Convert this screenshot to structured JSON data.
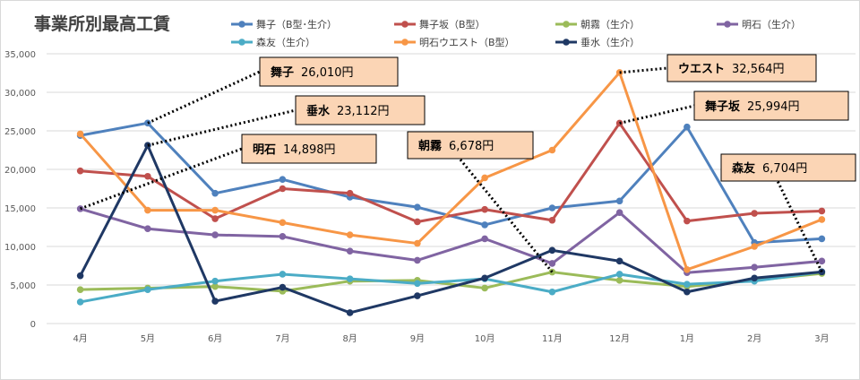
{
  "chart_data": {
    "type": "line",
    "title": "事業所別最高工賃",
    "categories": [
      "4月",
      "5月",
      "6月",
      "7月",
      "8月",
      "9月",
      "10月",
      "11月",
      "12月",
      "1月",
      "2月",
      "3月"
    ],
    "ylim": [
      0,
      35000
    ],
    "yticks": [
      "0",
      "5,000",
      "10,000",
      "15,000",
      "20,000",
      "25,000",
      "30,000",
      "35,000"
    ],
    "ytick_values": [
      0,
      5000,
      10000,
      15000,
      20000,
      25000,
      30000,
      35000
    ],
    "grid": true,
    "legend_position": "top",
    "series": [
      {
        "name": "舞子（B型･生介）",
        "color": "#4f81bd",
        "values": [
          24400,
          26010,
          16900,
          18700,
          16400,
          15100,
          12800,
          15000,
          15900,
          25500,
          10500,
          11000
        ]
      },
      {
        "name": "舞子坂（B型）",
        "color": "#c0504d",
        "values": [
          19800,
          19100,
          13600,
          17500,
          16900,
          13200,
          14800,
          13400,
          25994,
          13300,
          14300,
          14600
        ]
      },
      {
        "name": "朝霧（生介）",
        "color": "#9bbb59",
        "values": [
          4400,
          4600,
          4800,
          4200,
          5500,
          5600,
          4600,
          6678,
          5600,
          4800,
          5600,
          6500
        ]
      },
      {
        "name": "明石（生介）",
        "color": "#8064a2",
        "values": [
          14898,
          12300,
          11500,
          11300,
          9400,
          8200,
          11000,
          7800,
          14400,
          6600,
          7300,
          8100
        ]
      },
      {
        "name": "森友（生介）",
        "color": "#4bacc6",
        "values": [
          2800,
          4400,
          5500,
          6400,
          5800,
          5200,
          5800,
          4100,
          6400,
          5100,
          5500,
          6704
        ]
      },
      {
        "name": "明石ウエスト（B型）",
        "color": "#f79646",
        "values": [
          24600,
          14700,
          14700,
          13100,
          11500,
          10400,
          18900,
          22500,
          32564,
          7000,
          10000,
          13500
        ]
      },
      {
        "name": "垂水（生介）",
        "color": "#1f3864",
        "values": [
          6200,
          23112,
          2900,
          4700,
          1400,
          3600,
          5900,
          9500,
          8100,
          4100,
          5900,
          6700
        ]
      }
    ],
    "annotations": [
      {
        "name": "舞子",
        "value": "26,010円",
        "series": 0,
        "point": 1
      },
      {
        "name": "垂水",
        "value": "23,112円",
        "series": 6,
        "point": 1
      },
      {
        "name": "明石",
        "value": "14,898円",
        "series": 3,
        "point": 0
      },
      {
        "name": "朝霧",
        "value": "6,678円",
        "series": 2,
        "point": 7
      },
      {
        "name": "ウエスト",
        "value": "32,564円",
        "series": 5,
        "point": 8
      },
      {
        "name": "舞子坂",
        "value": "25,994円",
        "series": 1,
        "point": 8
      },
      {
        "name": "森友",
        "value": "6,704円",
        "series": 4,
        "point": 11
      }
    ]
  }
}
